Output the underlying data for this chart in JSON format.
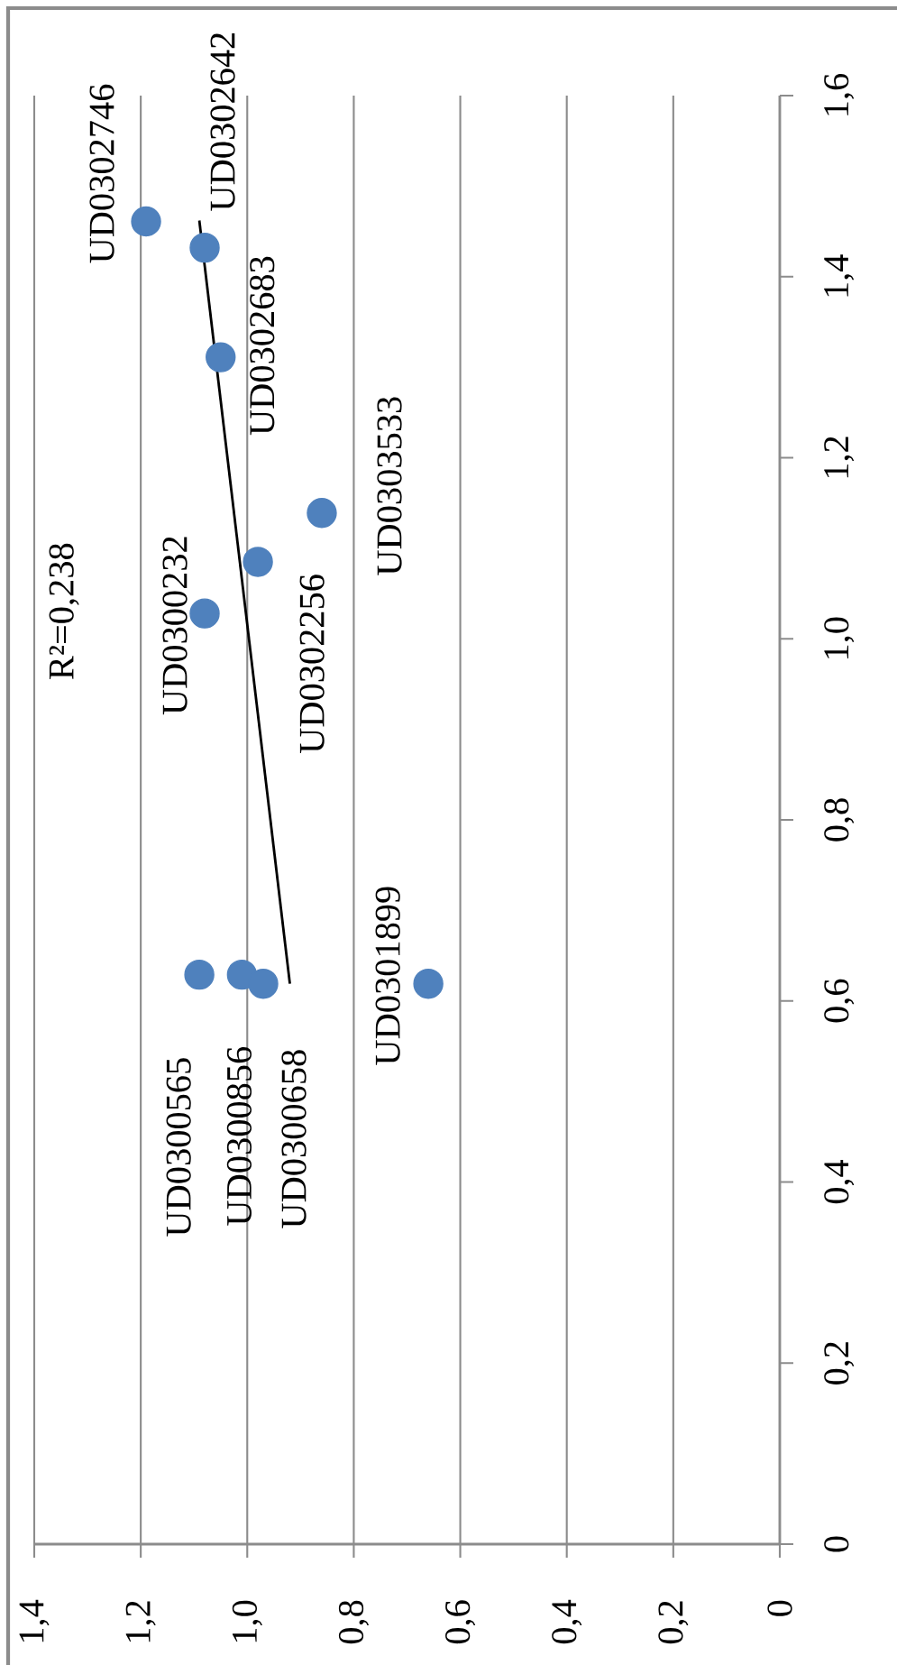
{
  "chart_data": {
    "type": "scatter",
    "xlim": [
      1.4,
      0
    ],
    "ylim": [
      0,
      1.6
    ],
    "xticks": [
      0,
      {
        "value": 0.2,
        "label": "0,2"
      },
      {
        "value": 0.4,
        "label": "0,4"
      },
      {
        "value": 0.6,
        "label": "0,6"
      },
      {
        "value": 0.8,
        "label": "0,8"
      },
      {
        "value": 1.0,
        "label": "1,0"
      },
      {
        "value": 1.2,
        "label": "1,2"
      },
      {
        "value": 1.4,
        "label": "1,4"
      }
    ],
    "yticks": [
      0,
      {
        "value": 0.2,
        "label": "0,2"
      },
      {
        "value": 0.4,
        "label": "0,4"
      },
      {
        "value": 0.6,
        "label": "0,6"
      },
      {
        "value": 0.8,
        "label": "0,8"
      },
      {
        "value": 1.0,
        "label": "1,0"
      },
      {
        "value": 1.2,
        "label": "1,2"
      },
      {
        "value": 1.4,
        "label": "1,4"
      },
      {
        "value": 1.6,
        "label": "1,6"
      }
    ],
    "grid": "x",
    "series": [
      {
        "color": "#4f81bd",
        "marker": "circle",
        "x": [
          1.19,
          1.08,
          1.05,
          0.86,
          0.98,
          1.08,
          1.09,
          1.01,
          0.97,
          0.66
        ],
        "values": [
          1.461,
          1.432,
          1.311,
          1.139,
          1.085,
          1.028,
          0.629,
          0.629,
          0.619,
          0.619
        ]
      },
      {
        "type": "line",
        "color": "#000000",
        "marker": "none",
        "line_style": "solid",
        "x": [
          0.92,
          1.09
        ],
        "values": [
          0.619,
          1.462
        ]
      }
    ],
    "annotations": [
      "R²=0,238",
      {
        "text": "UD0302746",
        "x": 1.19,
        "y": 1.461
      },
      {
        "text": "UD0302642",
        "x": 1.08,
        "y": 1.432
      },
      {
        "text": "UD0302683",
        "x": 1.05,
        "y": 1.311
      },
      {
        "text": "UD0303533",
        "x": 0.86,
        "y": 1.139
      },
      {
        "text": "UD0302256",
        "x": 0.98,
        "y": 1.085
      },
      {
        "text": "UD0300232",
        "x": 1.08,
        "y": 1.028
      },
      {
        "text": "UD0300565",
        "x": 1.09,
        "y": 0.629
      },
      {
        "text": "UD0300856",
        "x": 1.01,
        "y": 0.629
      },
      {
        "text": "UD0300658",
        "x": 0.97,
        "y": 0.619
      },
      {
        "text": "UD0301899",
        "x": 0.66,
        "y": 0.619
      }
    ]
  }
}
